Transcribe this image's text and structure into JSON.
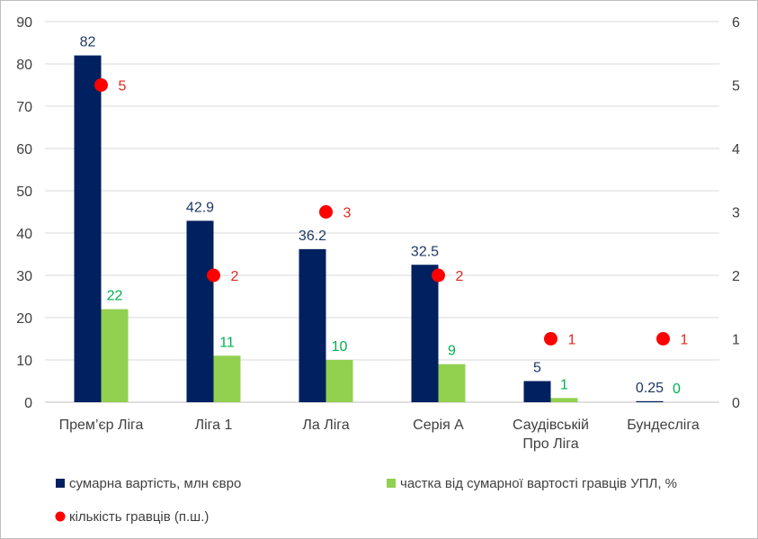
{
  "chart_data": {
    "type": "bar",
    "categories": [
      [
        "Прем’єр Ліга"
      ],
      [
        "Ліга 1"
      ],
      [
        "Ла Ліга"
      ],
      [
        "Серія А"
      ],
      [
        "Саудівській",
        "Про Ліга"
      ],
      [
        "Бундесліга"
      ]
    ],
    "series": [
      {
        "name": "сумарна вартість, млн євро",
        "type": "bar",
        "axis": "left",
        "color": "#002060",
        "label_color": "#1f3864",
        "values": [
          82,
          42.9,
          36.2,
          32.5,
          5,
          0.25
        ],
        "labels": [
          "82",
          "42.9",
          "36.2",
          "32.5",
          "5",
          "0.25"
        ]
      },
      {
        "name": "частка від сумарної вартості гравців УПЛ, %",
        "type": "bar",
        "axis": "left",
        "color": "#92d050",
        "label_color": "#00b050",
        "values": [
          22,
          11,
          10,
          9,
          1,
          0
        ],
        "labels": [
          "22",
          "11",
          "10",
          "9",
          "1",
          "0"
        ]
      },
      {
        "name": "кількість гравців (п.ш.)",
        "type": "scatter",
        "axis": "right",
        "color": "#ff0000",
        "label_color": "#e0281e",
        "values": [
          5,
          2,
          3,
          2,
          1,
          1
        ],
        "labels": [
          "5",
          "2",
          "3",
          "2",
          "1",
          "1"
        ]
      }
    ],
    "y_left": {
      "range": [
        0,
        90
      ],
      "ticks": [
        "0",
        "10",
        "20",
        "30",
        "40",
        "50",
        "60",
        "70",
        "80",
        "90"
      ]
    },
    "y_right": {
      "range": [
        0,
        6
      ],
      "ticks": [
        "0",
        "1",
        "2",
        "3",
        "4",
        "5",
        "6"
      ]
    },
    "grid": true,
    "legend_position": "bottom"
  }
}
